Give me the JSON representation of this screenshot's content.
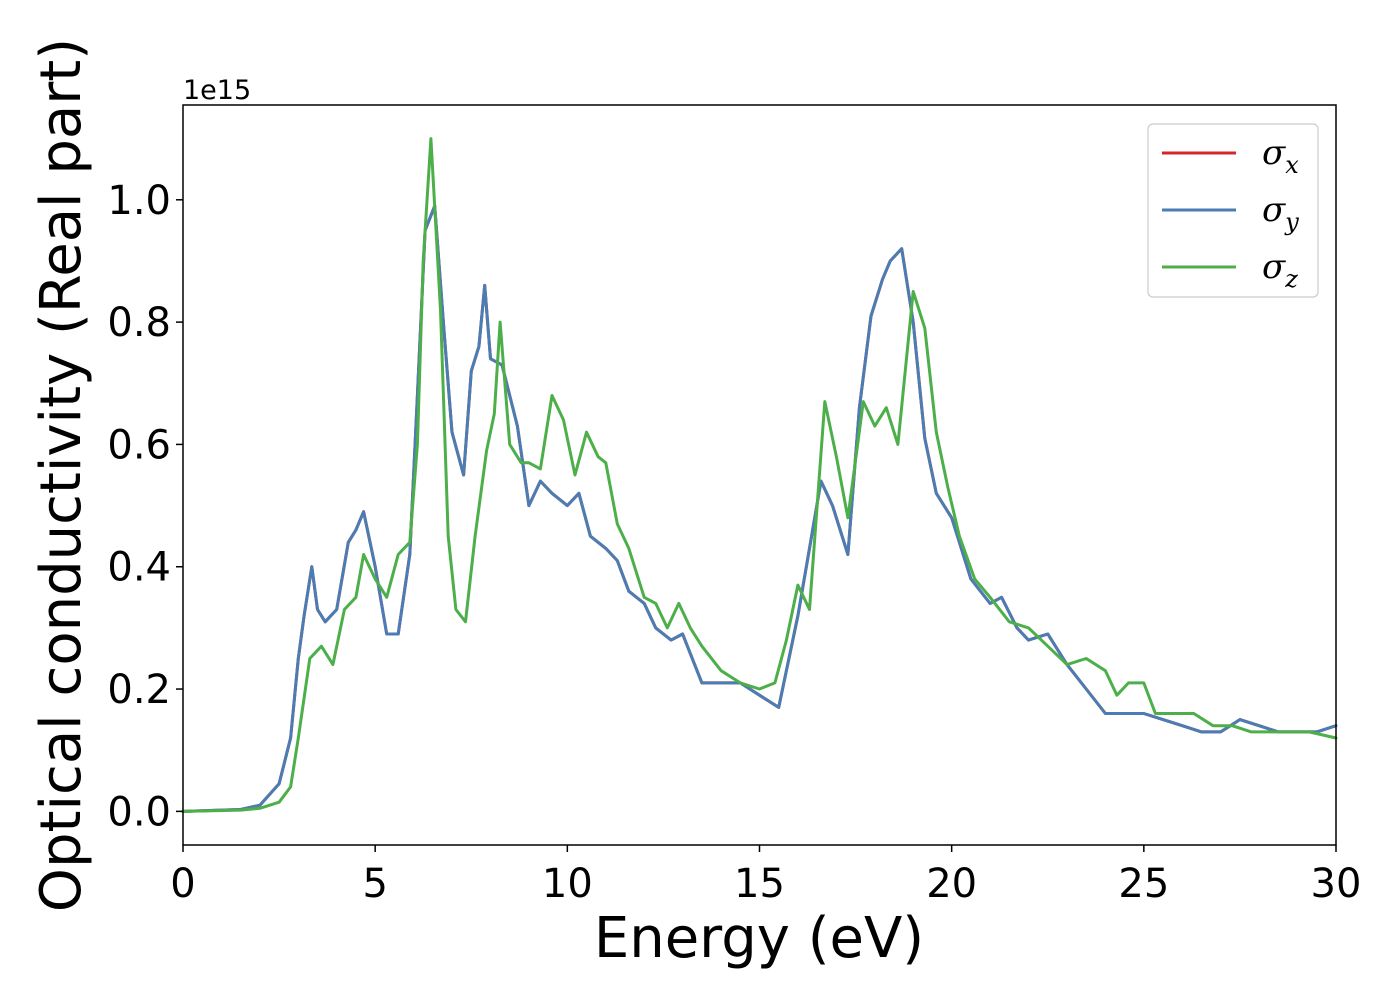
{
  "chart_data": {
    "type": "line",
    "title": "",
    "xlabel": "Energy (eV)",
    "ylabel": "Optical conductivity (Real part)",
    "y_offset_label": "1e15",
    "xlim": [
      0,
      30
    ],
    "ylim": [
      -0.055,
      1.155
    ],
    "x_ticks": [
      0,
      5,
      10,
      15,
      20,
      25,
      30
    ],
    "x_tick_labels": [
      "0",
      "5",
      "10",
      "15",
      "20",
      "25",
      "30"
    ],
    "y_ticks": [
      0.0,
      0.2,
      0.4,
      0.6,
      0.8,
      1.0
    ],
    "y_tick_labels": [
      "0.0",
      "0.2",
      "0.4",
      "0.6",
      "0.8",
      "1.0"
    ],
    "grid": false,
    "legend_position": "top-right",
    "series": [
      {
        "name": "σx",
        "legend_symbol": "σ",
        "legend_subscript": "x",
        "color": "#d62728",
        "x": [
          0,
          1.5,
          2.0,
          2.5,
          2.8,
          3.0,
          3.15,
          3.35,
          3.5,
          3.7,
          4.0,
          4.3,
          4.5,
          4.7,
          5.0,
          5.3,
          5.6,
          5.9,
          6.1,
          6.3,
          6.55,
          6.8,
          7.0,
          7.3,
          7.5,
          7.7,
          7.85,
          8.0,
          8.3,
          8.7,
          9.0,
          9.3,
          9.6,
          10.0,
          10.3,
          10.6,
          11.0,
          11.3,
          11.6,
          12.0,
          12.3,
          12.7,
          13.0,
          13.5,
          14.0,
          14.5,
          15.0,
          15.5,
          16.0,
          16.3,
          16.6,
          16.9,
          17.3,
          17.6,
          17.9,
          18.2,
          18.4,
          18.7,
          19.0,
          19.3,
          19.6,
          20.0,
          20.5,
          21.0,
          21.3,
          21.7,
          22.0,
          22.5,
          23.0,
          23.5,
          24.0,
          24.5,
          25.0,
          25.5,
          26.0,
          26.5,
          27.0,
          27.5,
          28.0,
          28.5,
          29.0,
          29.5,
          30.0
        ],
        "values": [
          0.0,
          0.003,
          0.01,
          0.045,
          0.12,
          0.25,
          0.32,
          0.4,
          0.33,
          0.31,
          0.33,
          0.44,
          0.46,
          0.49,
          0.4,
          0.29,
          0.29,
          0.42,
          0.68,
          0.95,
          0.99,
          0.78,
          0.62,
          0.55,
          0.72,
          0.76,
          0.86,
          0.74,
          0.73,
          0.63,
          0.5,
          0.54,
          0.52,
          0.5,
          0.52,
          0.45,
          0.43,
          0.41,
          0.36,
          0.34,
          0.3,
          0.28,
          0.29,
          0.21,
          0.21,
          0.21,
          0.19,
          0.17,
          0.32,
          0.43,
          0.54,
          0.5,
          0.42,
          0.66,
          0.81,
          0.87,
          0.9,
          0.92,
          0.8,
          0.61,
          0.52,
          0.48,
          0.38,
          0.34,
          0.35,
          0.3,
          0.28,
          0.29,
          0.24,
          0.2,
          0.16,
          0.16,
          0.16,
          0.15,
          0.14,
          0.13,
          0.13,
          0.15,
          0.14,
          0.13,
          0.13,
          0.13,
          0.14
        ]
      },
      {
        "name": "σy",
        "legend_symbol": "σ",
        "legend_subscript": "y",
        "color": "#4a7db3",
        "x": [
          0,
          1.5,
          2.0,
          2.5,
          2.8,
          3.0,
          3.15,
          3.35,
          3.5,
          3.7,
          4.0,
          4.3,
          4.5,
          4.7,
          5.0,
          5.3,
          5.6,
          5.9,
          6.1,
          6.3,
          6.55,
          6.8,
          7.0,
          7.3,
          7.5,
          7.7,
          7.85,
          8.0,
          8.3,
          8.7,
          9.0,
          9.3,
          9.6,
          10.0,
          10.3,
          10.6,
          11.0,
          11.3,
          11.6,
          12.0,
          12.3,
          12.7,
          13.0,
          13.5,
          14.0,
          14.5,
          15.0,
          15.5,
          16.0,
          16.3,
          16.6,
          16.9,
          17.3,
          17.6,
          17.9,
          18.2,
          18.4,
          18.7,
          19.0,
          19.3,
          19.6,
          20.0,
          20.5,
          21.0,
          21.3,
          21.7,
          22.0,
          22.5,
          23.0,
          23.5,
          24.0,
          24.5,
          25.0,
          25.5,
          26.0,
          26.5,
          27.0,
          27.5,
          28.0,
          28.5,
          29.0,
          29.5,
          30.0
        ],
        "values": [
          0.0,
          0.003,
          0.01,
          0.045,
          0.12,
          0.25,
          0.32,
          0.4,
          0.33,
          0.31,
          0.33,
          0.44,
          0.46,
          0.49,
          0.4,
          0.29,
          0.29,
          0.42,
          0.68,
          0.95,
          0.99,
          0.78,
          0.62,
          0.55,
          0.72,
          0.76,
          0.86,
          0.74,
          0.73,
          0.63,
          0.5,
          0.54,
          0.52,
          0.5,
          0.52,
          0.45,
          0.43,
          0.41,
          0.36,
          0.34,
          0.3,
          0.28,
          0.29,
          0.21,
          0.21,
          0.21,
          0.19,
          0.17,
          0.32,
          0.43,
          0.54,
          0.5,
          0.42,
          0.66,
          0.81,
          0.87,
          0.9,
          0.92,
          0.8,
          0.61,
          0.52,
          0.48,
          0.38,
          0.34,
          0.35,
          0.3,
          0.28,
          0.29,
          0.24,
          0.2,
          0.16,
          0.16,
          0.16,
          0.15,
          0.14,
          0.13,
          0.13,
          0.15,
          0.14,
          0.13,
          0.13,
          0.13,
          0.14
        ]
      },
      {
        "name": "σz",
        "legend_symbol": "σ",
        "legend_subscript": "z",
        "color": "#4daf4a",
        "x": [
          0,
          1.5,
          2.0,
          2.5,
          2.8,
          3.0,
          3.3,
          3.6,
          3.9,
          4.2,
          4.5,
          4.7,
          5.0,
          5.3,
          5.6,
          5.9,
          6.1,
          6.25,
          6.45,
          6.7,
          6.9,
          7.1,
          7.35,
          7.6,
          7.9,
          8.1,
          8.25,
          8.5,
          8.8,
          9.0,
          9.3,
          9.6,
          9.9,
          10.2,
          10.5,
          10.8,
          11.0,
          11.3,
          11.6,
          12.0,
          12.3,
          12.6,
          12.9,
          13.2,
          13.5,
          14.0,
          14.5,
          15.0,
          15.4,
          15.7,
          16.0,
          16.3,
          16.7,
          17.0,
          17.3,
          17.7,
          18.0,
          18.3,
          18.6,
          19.0,
          19.3,
          19.6,
          19.9,
          20.2,
          20.6,
          21.0,
          21.5,
          22.0,
          22.5,
          23.0,
          23.5,
          24.0,
          24.3,
          24.6,
          25.0,
          25.3,
          25.8,
          26.3,
          26.8,
          27.3,
          27.8,
          28.3,
          28.8,
          29.3,
          30.0
        ],
        "values": [
          0.0,
          0.002,
          0.005,
          0.015,
          0.04,
          0.12,
          0.25,
          0.27,
          0.24,
          0.33,
          0.35,
          0.42,
          0.38,
          0.35,
          0.42,
          0.44,
          0.6,
          0.9,
          1.1,
          0.82,
          0.45,
          0.33,
          0.31,
          0.45,
          0.59,
          0.65,
          0.8,
          0.6,
          0.57,
          0.57,
          0.56,
          0.68,
          0.64,
          0.55,
          0.62,
          0.58,
          0.57,
          0.47,
          0.43,
          0.35,
          0.34,
          0.3,
          0.34,
          0.3,
          0.27,
          0.23,
          0.21,
          0.2,
          0.21,
          0.28,
          0.37,
          0.33,
          0.67,
          0.58,
          0.48,
          0.67,
          0.63,
          0.66,
          0.6,
          0.85,
          0.79,
          0.62,
          0.53,
          0.45,
          0.38,
          0.35,
          0.31,
          0.3,
          0.27,
          0.24,
          0.25,
          0.23,
          0.19,
          0.21,
          0.21,
          0.16,
          0.16,
          0.16,
          0.14,
          0.14,
          0.13,
          0.13,
          0.13,
          0.13,
          0.12
        ]
      }
    ]
  }
}
